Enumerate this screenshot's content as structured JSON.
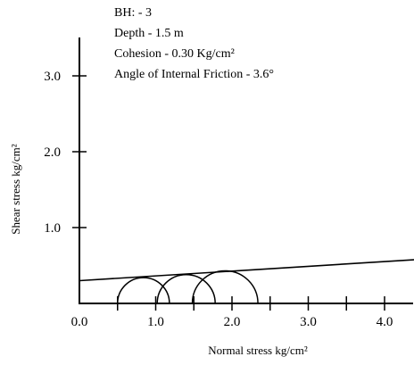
{
  "chart_data": {
    "type": "mohr_circle",
    "info_lines": [
      "BH: - 3",
      "Depth - 1.5 m",
      "Cohesion - 0.30 Kg/cm²",
      "Angle of Internal Friction - 3.6°"
    ],
    "xlabel": "Normal stress kg/cm²",
    "ylabel": "Shear stress kg/cm²",
    "xlim": [
      0,
      4.4
    ],
    "ylim": [
      0,
      3.5
    ],
    "x_ticks": [
      0.0,
      1.0,
      2.0,
      3.0,
      4.0
    ],
    "x_tick_labels": [
      "0.0",
      "1.0",
      "2.0",
      "3.0",
      "4.0"
    ],
    "x_minor_ticks": [
      0.5,
      1.5,
      2.5,
      3.5
    ],
    "y_ticks": [
      1.0,
      2.0,
      3.0
    ],
    "y_tick_labels": [
      "1.0",
      "2.0",
      "3.0"
    ],
    "cohesion": 0.3,
    "friction_angle_deg": 3.6,
    "circles": [
      {
        "sigma3": 0.5,
        "sigma1": 1.18
      },
      {
        "sigma3": 1.02,
        "sigma1": 1.78
      },
      {
        "sigma3": 1.48,
        "sigma1": 2.34
      }
    ]
  }
}
